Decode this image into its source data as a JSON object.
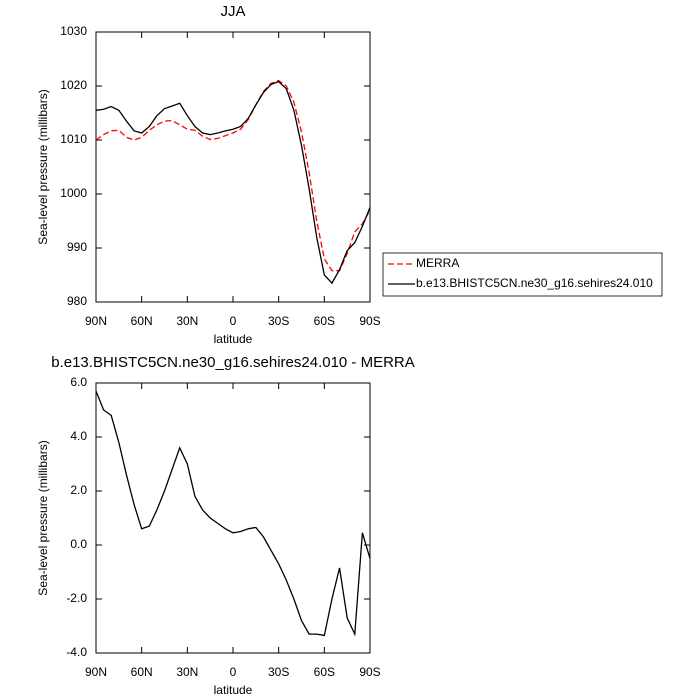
{
  "chart_data": [
    {
      "type": "line",
      "title": "JJA",
      "x_label": "latitude",
      "y_label": "Sea-level pressure (millibars)",
      "x": [
        90,
        85,
        80,
        75,
        70,
        65,
        60,
        55,
        50,
        45,
        40,
        35,
        30,
        25,
        20,
        15,
        10,
        5,
        0,
        -5,
        -10,
        -15,
        -20,
        -25,
        -30,
        -35,
        -40,
        -45,
        -50,
        -55,
        -60,
        -65,
        -70,
        -75,
        -80,
        -85,
        -90
      ],
      "series": [
        {
          "name": "MERRA",
          "color": "#ff0000",
          "line_style": "dashed",
          "values": [
            1010,
            1011,
            1011.7,
            1011.8,
            1010.5,
            1010,
            1010.5,
            1011.8,
            1012.8,
            1013.5,
            1013.6,
            1012.8,
            1012,
            1011.8,
            1010.7,
            1010.1,
            1010.3,
            1010.8,
            1011.3,
            1012,
            1013.8,
            1016.5,
            1019,
            1020.5,
            1021,
            1020,
            1017,
            1011.5,
            1004,
            995,
            988,
            985.8,
            985.8,
            989,
            993,
            994.5,
            997
          ]
        },
        {
          "name": "b.e13.BHISTC5CN.ne30_g16.sehires24.010",
          "color": "#000000",
          "line_style": "solid",
          "values": [
            1015.5,
            1015.7,
            1016.2,
            1015.5,
            1013.5,
            1011.7,
            1011.3,
            1012.5,
            1014.5,
            1015.8,
            1016.3,
            1016.8,
            1014.5,
            1012.5,
            1011.3,
            1011,
            1011.3,
            1011.7,
            1012,
            1012.5,
            1014,
            1016.5,
            1018.8,
            1020.3,
            1020.8,
            1019.5,
            1015.5,
            1009,
            1001,
            992,
            985,
            983.5,
            986,
            989.5,
            991,
            994,
            997.5
          ]
        }
      ],
      "xlim": [
        90,
        -90
      ],
      "xticks": [
        {
          "value": 90,
          "label": "90N"
        },
        {
          "value": 60,
          "label": "60N"
        },
        {
          "value": 30,
          "label": "30N"
        },
        0,
        {
          "value": -30,
          "label": "30S"
        },
        {
          "value": -60,
          "label": "60S"
        },
        {
          "value": -90,
          "label": "90S"
        }
      ],
      "ylim": [
        980,
        1030
      ],
      "yticks": [
        980,
        990,
        1000,
        1010,
        1020,
        1030
      ],
      "legend": "right"
    },
    {
      "type": "line",
      "title": "b.e13.BHISTC5CN.ne30_g16.sehires24.010 - MERRA",
      "x_label": "latitude",
      "y_label": "Sea-level pressure (millibars)",
      "x": [
        90,
        85,
        80,
        75,
        70,
        65,
        60,
        55,
        50,
        45,
        40,
        35,
        30,
        25,
        20,
        15,
        10,
        5,
        0,
        -5,
        -10,
        -15,
        -20,
        -25,
        -30,
        -35,
        -40,
        -45,
        -50,
        -55,
        -60,
        -65,
        -70,
        -75,
        -80,
        -85,
        -90
      ],
      "values": [
        5.7,
        5.0,
        4.8,
        3.8,
        2.6,
        1.5,
        0.6,
        0.7,
        1.3,
        2.0,
        2.8,
        3.6,
        3.0,
        1.8,
        1.3,
        1.0,
        0.8,
        0.6,
        0.45,
        0.5,
        0.6,
        0.65,
        0.3,
        -0.2,
        -0.7,
        -1.3,
        -2.0,
        -2.8,
        -3.3,
        -3.3,
        -3.35,
        -2.0,
        -0.85,
        -2.7,
        -3.3,
        0.45,
        -0.5
      ],
      "color": "#000000",
      "xlim": [
        90,
        -90
      ],
      "xticks": [
        {
          "value": 90,
          "label": "90N"
        },
        {
          "value": 60,
          "label": "60N"
        },
        {
          "value": 30,
          "label": "30N"
        },
        0,
        {
          "value": -30,
          "label": "30S"
        },
        {
          "value": -60,
          "label": "60S"
        },
        {
          "value": -90,
          "label": "90S"
        }
      ],
      "ylim": [
        -4,
        6
      ],
      "yticks": [
        {
          "value": -4,
          "label": "-4.0"
        },
        {
          "value": -2,
          "label": "-2.0"
        },
        {
          "value": 0,
          "label": "0.0"
        },
        {
          "value": 2,
          "label": "2.0"
        },
        {
          "value": 4,
          "label": "4.0"
        },
        {
          "value": 6,
          "label": "6.0"
        }
      ]
    }
  ]
}
